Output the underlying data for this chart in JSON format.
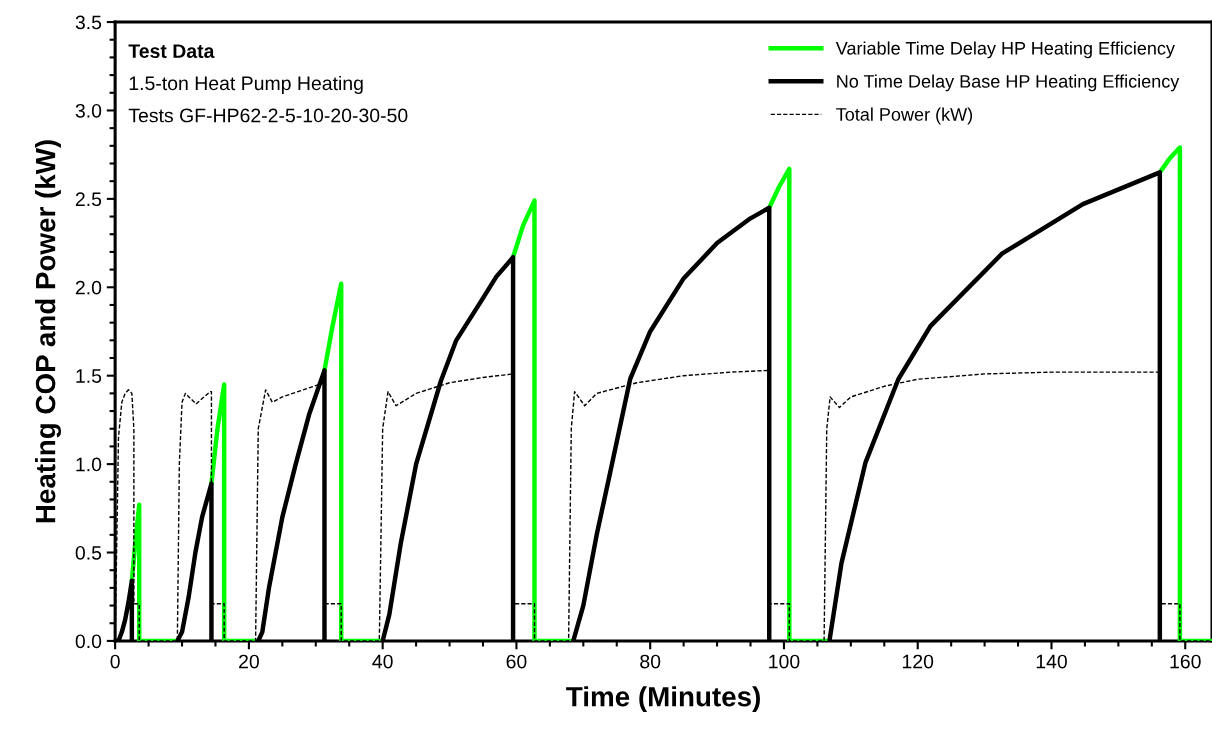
{
  "chart_data": {
    "type": "line",
    "title": "Test Data",
    "annotations": [
      "1.5-ton Heat Pump Heating",
      "Tests GF-HP62-2-5-10-20-30-50"
    ],
    "xlabel": "Time (Minutes)",
    "ylabel": "Heating COP and Power (kW)",
    "xlim": [
      0,
      164
    ],
    "xticks": [
      0,
      20,
      40,
      60,
      80,
      100,
      120,
      140,
      160
    ],
    "ylim": [
      0,
      3.5
    ],
    "yticks": [
      {
        "value": 0,
        "label": "0.0"
      },
      0.5,
      {
        "value": 1,
        "label": "1.0"
      },
      1.5,
      {
        "value": 2,
        "label": "2.0"
      },
      2.5,
      {
        "value": 3,
        "label": "3.0"
      },
      3.5
    ],
    "grid": false,
    "legend": "top right",
    "marker": "none",
    "series": [
      {
        "name": "Variable Time Delay HP Heating Efficiency",
        "color": "#00ff00",
        "line_style": "solid",
        "x": [
          2.5,
          3.0,
          3.6,
          3.6,
          9.0,
          9.1,
          14.4,
          15.3,
          16.3,
          16.3,
          21.0,
          21.1,
          31.3,
          32.5,
          33.8,
          33.8,
          39.6,
          39.7,
          59.5,
          61,
          62.7,
          62.7,
          68.1,
          68.2,
          97.8,
          99.3,
          100.8,
          100.8,
          106.4,
          106.5,
          156.2,
          157.7,
          159.2,
          159.2,
          164
        ],
        "values": [
          0.34,
          0.55,
          0.77,
          0,
          0,
          null,
          0.89,
          1.2,
          1.45,
          0,
          0,
          null,
          1.53,
          1.78,
          2.02,
          0,
          0,
          null,
          2.17,
          2.35,
          2.49,
          0,
          0,
          null,
          2.45,
          2.57,
          2.67,
          0,
          0,
          null,
          2.65,
          2.73,
          2.79,
          0,
          0
        ]
      },
      {
        "name": "No Time Delay Base HP Heating Efficiency",
        "color": "#000000",
        "line_style": "solid",
        "x": [
          0,
          0.5,
          1.0,
          1.5,
          2.0,
          2.5,
          2.5,
          2.6,
          9.3,
          10,
          11,
          12,
          13,
          14.4,
          14.4,
          14.5,
          21.4,
          22,
          23,
          25,
          27,
          29,
          31.3,
          31.3,
          31.4,
          40,
          41,
          42.7,
          45,
          48.7,
          51,
          54.7,
          57,
          59.5,
          59.5,
          59.6,
          68.5,
          70,
          72,
          74,
          77,
          80,
          85,
          90,
          95,
          97.8,
          97.8,
          97.9,
          106.8,
          108.6,
          112.2,
          117.1,
          121.9,
          132.6,
          144.7,
          156.2,
          156.2
        ],
        "values": [
          0,
          0,
          0.05,
          0.12,
          0.22,
          0.34,
          0,
          null,
          0,
          0.05,
          0.25,
          0.5,
          0.7,
          0.89,
          0,
          null,
          0,
          0.05,
          0.3,
          0.7,
          1.0,
          1.28,
          1.53,
          0,
          null,
          0,
          0.15,
          0.55,
          1.0,
          1.47,
          1.7,
          1.92,
          2.06,
          2.17,
          0,
          null,
          0,
          0.2,
          0.6,
          0.95,
          1.48,
          1.75,
          2.05,
          2.25,
          2.39,
          2.45,
          0,
          null,
          0,
          0.44,
          1.01,
          1.48,
          1.78,
          2.19,
          2.47,
          2.65,
          0
        ]
      },
      {
        "name": "Total Power (kW)",
        "color": "#000000",
        "line_style": "dashed",
        "x": [
          0,
          0.5,
          1.0,
          1.5,
          2.0,
          2.5,
          2.8,
          2.8,
          3.6,
          3.6,
          9.3,
          9.6,
          10,
          10.5,
          12.1,
          14.2,
          14.4,
          14.4,
          16.3,
          16.3,
          21.0,
          21.4,
          22.5,
          23.5,
          25,
          30.5,
          31.3,
          31.3,
          33.8,
          33.8,
          39.5,
          40.0,
          40.8,
          42,
          45,
          50,
          55,
          59.5,
          59.5,
          62.7,
          62.7,
          67.8,
          68.2,
          68.7,
          70.2,
          72,
          78,
          85,
          92,
          97.8,
          97.8,
          100.8,
          100.8,
          106,
          106.4,
          106.9,
          108.3,
          110,
          115,
          120,
          130,
          140,
          156.2,
          156.2,
          159.2,
          159.2,
          164
        ],
        "values": [
          0,
          1.15,
          1.35,
          1.4,
          1.42,
          1.4,
          1.2,
          0.21,
          0.21,
          0,
          0,
          1.0,
          1.35,
          1.4,
          1.34,
          1.41,
          1.41,
          0.21,
          0.21,
          0,
          0,
          1.2,
          1.42,
          1.35,
          1.38,
          1.45,
          1.46,
          0.21,
          0.21,
          0,
          0,
          1.2,
          1.41,
          1.33,
          1.4,
          1.46,
          1.49,
          1.51,
          0.21,
          0.21,
          0,
          0,
          1.2,
          1.41,
          1.33,
          1.4,
          1.46,
          1.5,
          1.52,
          1.53,
          0.21,
          0.21,
          0,
          0,
          1.2,
          1.38,
          1.32,
          1.38,
          1.44,
          1.48,
          1.51,
          1.52,
          1.52,
          0.21,
          0.21,
          0,
          0
        ]
      }
    ]
  }
}
